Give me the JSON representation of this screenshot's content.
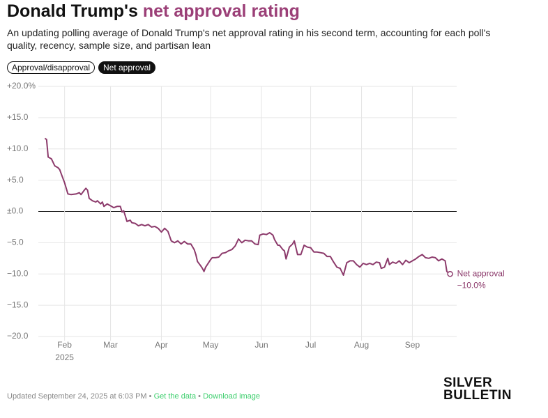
{
  "header": {
    "title_plain": "Donald Trump's",
    "title_highlight": "net approval rating",
    "subtitle": "An updating polling average of Donald Trump's net approval rating in his second term, accounting for each poll's quality, recency, sample size, and partisan lean"
  },
  "toggles": [
    "Approval/disapproval",
    "Net approval"
  ],
  "chart_data": {
    "type": "line",
    "series": [
      {
        "name": "Net approval",
        "color": "#8c3a6b",
        "x": [
          0,
          1,
          2,
          4,
          6,
          8,
          9,
          10,
          12,
          13,
          14,
          16,
          19,
          21,
          22,
          24,
          25,
          26,
          27,
          29,
          31,
          32,
          34,
          35,
          36,
          38,
          40,
          42,
          44,
          46,
          47,
          48,
          49,
          50,
          52,
          53,
          55,
          57,
          59,
          61,
          63,
          65,
          67,
          69,
          71,
          73,
          75,
          77,
          79,
          81,
          83,
          85,
          87,
          89,
          91,
          92,
          93,
          95,
          96,
          97,
          98,
          99,
          101,
          102,
          104,
          106,
          108,
          110,
          112,
          114,
          116,
          118,
          120,
          122,
          124,
          126,
          128,
          130,
          131,
          133,
          135,
          137,
          139,
          140,
          142,
          143,
          145,
          146,
          147,
          149,
          151,
          152,
          154,
          156,
          158,
          160,
          162,
          164,
          166,
          168,
          170,
          172,
          174,
          176,
          178,
          180,
          182,
          184,
          186,
          188,
          190,
          192,
          194,
          196,
          198,
          200,
          202,
          204,
          205,
          207,
          209,
          210,
          212,
          214,
          216,
          218,
          220,
          222,
          224,
          226,
          228,
          230,
          232,
          234,
          236,
          238,
          240,
          242,
          244,
          245,
          247
        ],
        "values": [
          11.7,
          11.5,
          8.7,
          8.4,
          7.3,
          7.0,
          6.7,
          6.0,
          4.6,
          3.7,
          2.8,
          2.7,
          2.8,
          3.0,
          2.7,
          3.4,
          3.7,
          3.4,
          2.1,
          1.7,
          1.5,
          1.7,
          1.2,
          1.5,
          0.8,
          1.2,
          0.9,
          0.6,
          0.8,
          0.8,
          -0.1,
          0.1,
          -0.7,
          -1.6,
          -1.4,
          -1.8,
          -1.9,
          -2.3,
          -2.1,
          -2.3,
          -2.1,
          -2.5,
          -2.4,
          -2.7,
          -3.3,
          -2.7,
          -3.2,
          -4.7,
          -5.0,
          -4.7,
          -5.2,
          -4.8,
          -5.2,
          -5.2,
          -6.1,
          -6.9,
          -8.0,
          -8.7,
          -9.1,
          -9.6,
          -8.9,
          -8.5,
          -7.7,
          -7.4,
          -7.4,
          -7.3,
          -6.7,
          -6.6,
          -6.3,
          -6.1,
          -5.5,
          -4.4,
          -5.0,
          -4.6,
          -4.7,
          -4.7,
          -5.2,
          -5.3,
          -3.8,
          -3.6,
          -3.7,
          -3.4,
          -3.8,
          -4.5,
          -5.4,
          -5.4,
          -6.1,
          -6.3,
          -7.6,
          -5.7,
          -5.2,
          -4.7,
          -6.9,
          -6.9,
          -5.4,
          -5.7,
          -5.8,
          -6.5,
          -6.5,
          -6.6,
          -6.7,
          -7.2,
          -7.2,
          -8.1,
          -8.9,
          -9.1,
          -10.2,
          -8.2,
          -7.9,
          -7.9,
          -8.5,
          -8.9,
          -8.3,
          -8.5,
          -8.3,
          -8.5,
          -8.1,
          -8.2,
          -9.1,
          -8.9,
          -7.5,
          -8.5,
          -8.1,
          -8.3,
          -7.9,
          -8.5,
          -7.8,
          -8.2,
          -7.9,
          -7.6,
          -7.2,
          -6.9,
          -7.4,
          -7.5,
          -7.3,
          -7.4,
          -7.9,
          -7.6,
          -7.9,
          -9.6,
          -10.0
        ]
      }
    ],
    "end_value_label": "−10.0%",
    "xlim": [
      -4,
      251
    ],
    "xticks": [
      {
        "value": 12,
        "label": "Feb"
      },
      {
        "value": 40,
        "label": "Mar"
      },
      {
        "value": 71,
        "label": "Apr"
      },
      {
        "value": 101,
        "label": "May"
      },
      {
        "value": 132,
        "label": "Jun"
      },
      {
        "value": 162,
        "label": "Jul"
      },
      {
        "value": 193,
        "label": "Aug"
      },
      {
        "value": 224,
        "label": "Sep"
      }
    ],
    "x_year_label": "2025",
    "ylim": [
      -20,
      20
    ],
    "yticks": [
      {
        "value": 20,
        "label": "+20.0%"
      },
      {
        "value": 15,
        "label": "+15.0"
      },
      {
        "value": 10,
        "label": "+10.0"
      },
      {
        "value": 5,
        "label": "+5.0"
      },
      {
        "value": 0,
        "label": "±0.0"
      },
      {
        "value": -5,
        "label": "−5.0"
      },
      {
        "value": -10,
        "label": "−10.0"
      },
      {
        "value": -15,
        "label": "−15.0"
      },
      {
        "value": -20,
        "label": "−20.0"
      }
    ],
    "grid": true
  },
  "footer": {
    "updated": "Updated September 24, 2025 at 6:03 PM •",
    "get_data": "Get the data",
    "separator": "•",
    "download": "Download image"
  },
  "logo": [
    "SILVER",
    "BULLETIN"
  ]
}
